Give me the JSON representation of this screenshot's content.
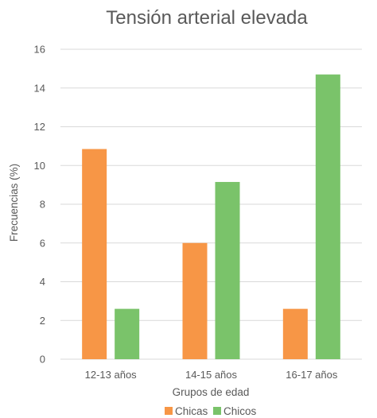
{
  "chart_data": {
    "type": "bar",
    "title": "Tensión arterial elevada",
    "xlabel": "Grupos de edad",
    "ylabel": "Frecuencias (%)",
    "categories": [
      "12-13 años",
      "14-15 años",
      "16-17 años"
    ],
    "series": [
      {
        "name": "Chicas",
        "color": "#f79646",
        "values": [
          10.85,
          6.0,
          2.6
        ]
      },
      {
        "name": "Chicos",
        "color": "#7ac36a",
        "values": [
          2.6,
          9.15,
          14.7
        ]
      }
    ],
    "ylim": [
      0,
      16
    ],
    "yticks": [
      "0",
      "2",
      "4",
      "6",
      "8",
      "10",
      "12",
      "14",
      "16"
    ],
    "grid": true,
    "legend_position": "bottom"
  }
}
